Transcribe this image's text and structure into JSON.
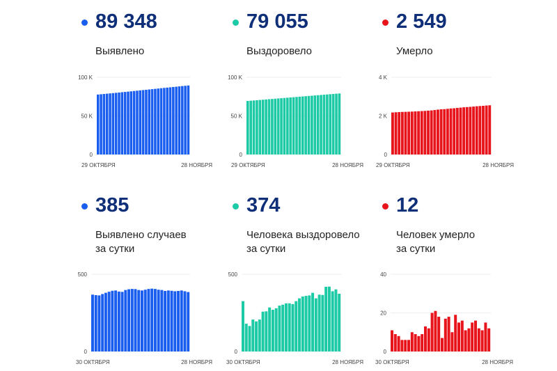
{
  "panels": [
    {
      "id": "cases-total",
      "value": "89 348",
      "label": "Выявлено",
      "color": "#1a5ef0"
    },
    {
      "id": "recovered-total",
      "value": "79 055",
      "label": "Выздоровело",
      "color": "#1dcaa6"
    },
    {
      "id": "deaths-total",
      "value": "2 549",
      "label": "Умерло",
      "color": "#e8141c"
    },
    {
      "id": "cases-daily",
      "value": "385",
      "label": "Выявлено случаев",
      "label2": "за сутки",
      "color": "#1a5ef0"
    },
    {
      "id": "recovered-daily",
      "value": "374",
      "label": "Человека выздоровело",
      "label2": "за сутки",
      "color": "#1dcaa6"
    },
    {
      "id": "deaths-daily",
      "value": "12",
      "label": "Человек умерло",
      "label2": "за сутки",
      "color": "#e8141c"
    }
  ],
  "chart_data": [
    {
      "type": "bar",
      "title": "Выявлено",
      "x_start": "29 ОКТЯБРЯ",
      "x_end": "28 НОЯБРЯ",
      "ylim": [
        0,
        100000
      ],
      "yticks": [
        0,
        50000,
        100000
      ],
      "ytick_labels": [
        "0",
        "50 K",
        "100 K"
      ],
      "grid": true,
      "values": [
        77642,
        78010,
        78378,
        78743,
        79106,
        79478,
        79858,
        80245,
        80638,
        81033,
        81421,
        81807,
        82205,
        82608,
        83013,
        83417,
        83815,
        84210,
        84610,
        85015,
        85422,
        85827,
        86227,
        86625,
        87017,
        87412,
        87805,
        88195,
        88580,
        88963,
        89348
      ]
    },
    {
      "type": "bar",
      "title": "Выздоровело",
      "x_start": "29 ОКТЯБРЯ",
      "x_end": "28 НОЯБРЯ",
      "ylim": [
        0,
        100000
      ],
      "yticks": [
        0,
        50000,
        100000
      ],
      "ytick_labels": [
        "0",
        "50 K",
        "100 K"
      ],
      "grid": true,
      "values": [
        69335,
        69659,
        69983,
        70307,
        70631,
        70955,
        71279,
        71603,
        71927,
        72251,
        72575,
        72899,
        73223,
        73547,
        73871,
        74195,
        74519,
        74843,
        75167,
        75491,
        75815,
        76139,
        76463,
        76787,
        77111,
        77435,
        77759,
        78083,
        78407,
        78731,
        79055
      ]
    },
    {
      "type": "bar",
      "title": "Умерло",
      "x_start": "29 ОКТЯБРЯ",
      "x_end": "28 НОЯБРЯ",
      "ylim": [
        0,
        4000
      ],
      "yticks": [
        0,
        2000,
        4000
      ],
      "ytick_labels": [
        "0",
        "2 K",
        "4 K"
      ],
      "grid": true,
      "values": [
        2177,
        2188,
        2197,
        2205,
        2211,
        2217,
        2223,
        2233,
        2242,
        2250,
        2259,
        2272,
        2284,
        2304,
        2325,
        2343,
        2350,
        2367,
        2385,
        2395,
        2414,
        2429,
        2445,
        2456,
        2468,
        2483,
        2499,
        2511,
        2522,
        2537,
        2549
      ]
    },
    {
      "type": "bar",
      "title": "Выявлено случаев за сутки",
      "x_start": "30 ОКТЯБРЯ",
      "x_end": "28 НОЯБРЯ",
      "ylim": [
        0,
        500
      ],
      "yticks": [
        0,
        500
      ],
      "ytick_labels": [
        "0",
        "500"
      ],
      "grid": true,
      "values": [
        368,
        365,
        363,
        372,
        380,
        387,
        393,
        395,
        388,
        386,
        398,
        403,
        405,
        404,
        398,
        395,
        400,
        405,
        407,
        405,
        400,
        398,
        392,
        395,
        393,
        390,
        392,
        395,
        390,
        385
      ]
    },
    {
      "type": "bar",
      "title": "Человека выздоровело за сутки",
      "x_start": "30 ОКТЯБРЯ",
      "x_end": "28 НОЯБРЯ",
      "ylim": [
        0,
        500
      ],
      "yticks": [
        0,
        500
      ],
      "ytick_labels": [
        "0",
        "500"
      ],
      "grid": true,
      "values": [
        326,
        180,
        165,
        207,
        195,
        207,
        258,
        260,
        285,
        270,
        280,
        297,
        303,
        312,
        312,
        307,
        326,
        344,
        356,
        360,
        363,
        380,
        344,
        368,
        366,
        419,
        420,
        390,
        402,
        374
      ]
    },
    {
      "type": "bar",
      "title": "Человек умерло за сутки",
      "x_start": "30 ОКТЯБРЯ",
      "x_end": "28 НОЯБРЯ",
      "ylim": [
        0,
        40
      ],
      "yticks": [
        0,
        20,
        40
      ],
      "ytick_labels": [
        "0",
        "20",
        "40"
      ],
      "grid": true,
      "values": [
        11,
        9,
        8,
        6,
        6,
        6,
        10,
        9,
        8,
        9,
        13,
        12,
        20,
        21,
        18,
        7,
        17,
        18,
        10,
        19,
        15,
        16,
        11,
        12,
        15,
        16,
        12,
        11,
        15,
        12
      ]
    }
  ]
}
